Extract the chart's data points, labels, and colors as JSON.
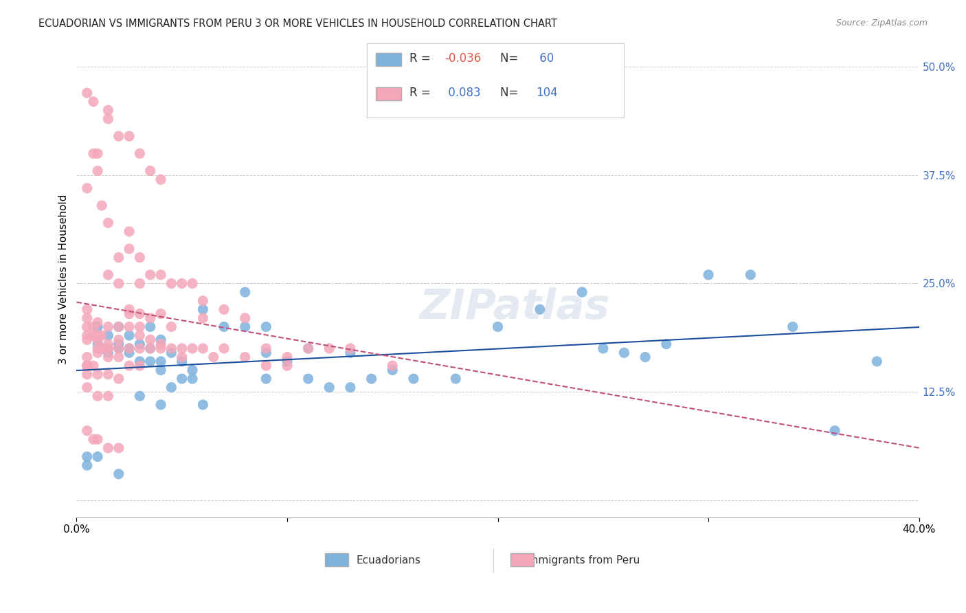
{
  "title": "ECUADORIAN VS IMMIGRANTS FROM PERU 3 OR MORE VEHICLES IN HOUSEHOLD CORRELATION CHART",
  "source": "Source: ZipAtlas.com",
  "ylabel": "3 or more Vehicles in Household",
  "yticks": [
    0.0,
    0.125,
    0.25,
    0.375,
    0.5
  ],
  "ytick_labels": [
    "",
    "12.5%",
    "25.0%",
    "37.5%",
    "50.0%"
  ],
  "xlim": [
    0.0,
    0.4
  ],
  "ylim": [
    -0.02,
    0.53
  ],
  "color_blue": "#7EB2DD",
  "color_pink": "#F4A7B9",
  "line_blue": "#1B4F9C",
  "line_pink": "#C0507A",
  "watermark": "ZIPatlas",
  "blue_x": [
    0.01,
    0.01,
    0.015,
    0.015,
    0.02,
    0.02,
    0.02,
    0.025,
    0.025,
    0.025,
    0.03,
    0.03,
    0.035,
    0.035,
    0.035,
    0.04,
    0.04,
    0.04,
    0.045,
    0.045,
    0.05,
    0.05,
    0.055,
    0.055,
    0.06,
    0.07,
    0.08,
    0.08,
    0.09,
    0.09,
    0.1,
    0.11,
    0.12,
    0.13,
    0.14,
    0.15,
    0.16,
    0.18,
    0.2,
    0.22,
    0.24,
    0.25,
    0.26,
    0.27,
    0.28,
    0.3,
    0.32,
    0.34,
    0.36,
    0.38,
    0.005,
    0.005,
    0.01,
    0.02,
    0.03,
    0.04,
    0.06,
    0.09,
    0.11,
    0.13
  ],
  "blue_y": [
    0.18,
    0.2,
    0.17,
    0.19,
    0.18,
    0.2,
    0.175,
    0.17,
    0.19,
    0.175,
    0.16,
    0.18,
    0.16,
    0.175,
    0.2,
    0.15,
    0.16,
    0.185,
    0.13,
    0.17,
    0.14,
    0.16,
    0.14,
    0.15,
    0.22,
    0.2,
    0.2,
    0.24,
    0.14,
    0.2,
    0.16,
    0.14,
    0.13,
    0.13,
    0.14,
    0.15,
    0.14,
    0.14,
    0.2,
    0.22,
    0.24,
    0.175,
    0.17,
    0.165,
    0.18,
    0.26,
    0.26,
    0.2,
    0.08,
    0.16,
    0.05,
    0.04,
    0.05,
    0.03,
    0.12,
    0.11,
    0.11,
    0.17,
    0.175,
    0.17
  ],
  "pink_x": [
    0.005,
    0.005,
    0.005,
    0.005,
    0.005,
    0.008,
    0.008,
    0.01,
    0.01,
    0.01,
    0.01,
    0.01,
    0.012,
    0.012,
    0.015,
    0.015,
    0.015,
    0.015,
    0.015,
    0.02,
    0.02,
    0.02,
    0.02,
    0.025,
    0.025,
    0.025,
    0.025,
    0.03,
    0.03,
    0.03,
    0.03,
    0.035,
    0.035,
    0.035,
    0.04,
    0.04,
    0.04,
    0.045,
    0.045,
    0.05,
    0.05,
    0.055,
    0.06,
    0.06,
    0.065,
    0.07,
    0.08,
    0.09,
    0.1,
    0.11,
    0.12,
    0.13,
    0.15,
    0.005,
    0.008,
    0.01,
    0.01,
    0.012,
    0.015,
    0.015,
    0.02,
    0.02,
    0.025,
    0.025,
    0.03,
    0.03,
    0.035,
    0.04,
    0.045,
    0.05,
    0.055,
    0.06,
    0.07,
    0.08,
    0.09,
    0.1,
    0.005,
    0.008,
    0.015,
    0.015,
    0.02,
    0.025,
    0.03,
    0.035,
    0.04,
    0.005,
    0.005,
    0.005,
    0.01,
    0.015,
    0.005,
    0.008,
    0.01,
    0.015,
    0.02,
    0.025,
    0.03,
    0.005,
    0.005,
    0.005,
    0.008,
    0.01,
    0.015,
    0.02
  ],
  "pink_y": [
    0.2,
    0.19,
    0.21,
    0.22,
    0.185,
    0.19,
    0.2,
    0.175,
    0.19,
    0.205,
    0.185,
    0.17,
    0.19,
    0.175,
    0.175,
    0.18,
    0.2,
    0.175,
    0.165,
    0.185,
    0.2,
    0.175,
    0.165,
    0.22,
    0.2,
    0.215,
    0.175,
    0.215,
    0.19,
    0.2,
    0.175,
    0.21,
    0.185,
    0.175,
    0.18,
    0.215,
    0.175,
    0.175,
    0.2,
    0.175,
    0.165,
    0.175,
    0.21,
    0.175,
    0.165,
    0.175,
    0.165,
    0.175,
    0.165,
    0.175,
    0.175,
    0.175,
    0.155,
    0.36,
    0.4,
    0.38,
    0.4,
    0.34,
    0.32,
    0.26,
    0.28,
    0.25,
    0.29,
    0.31,
    0.28,
    0.25,
    0.26,
    0.26,
    0.25,
    0.25,
    0.25,
    0.23,
    0.22,
    0.21,
    0.155,
    0.155,
    0.47,
    0.46,
    0.45,
    0.44,
    0.42,
    0.42,
    0.4,
    0.38,
    0.37,
    0.155,
    0.145,
    0.13,
    0.12,
    0.12,
    0.08,
    0.07,
    0.07,
    0.06,
    0.06,
    0.155,
    0.155,
    0.165,
    0.155,
    0.155,
    0.155,
    0.145,
    0.145,
    0.14
  ]
}
